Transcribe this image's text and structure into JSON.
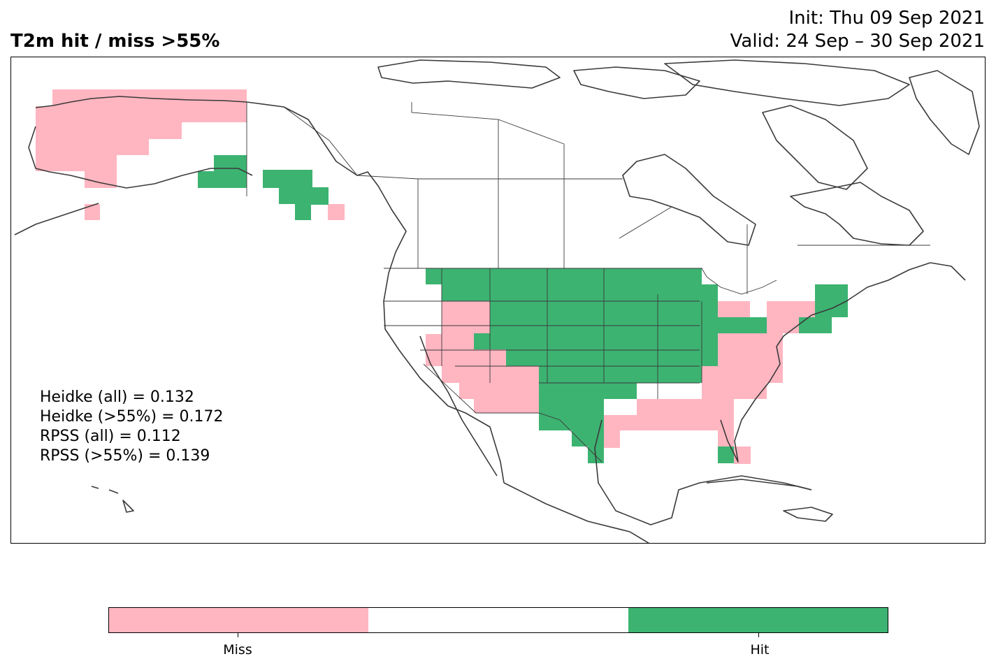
{
  "header": {
    "title": "T2m hit / miss  >55%",
    "init_line": "Init: Thu 09 Sep 2021",
    "valid_line": "Valid: 24 Sep – 30 Sep 2021"
  },
  "scores": [
    "Heidke (all) = 0.132",
    "Heidke (>55%) = 0.172",
    "RPSS (all) = 0.112",
    "RPSS (>55%) = 0.139"
  ],
  "legend": {
    "miss_label": "Miss",
    "hit_label": "Hit",
    "colors": {
      "miss": "#ffb6c1",
      "neutral": "#ffffff",
      "hit": "#3cb371"
    }
  },
  "map": {
    "region": "North America",
    "coastline_color": "#3a3a3a",
    "categories": [
      "Miss",
      "Hit"
    ]
  }
}
